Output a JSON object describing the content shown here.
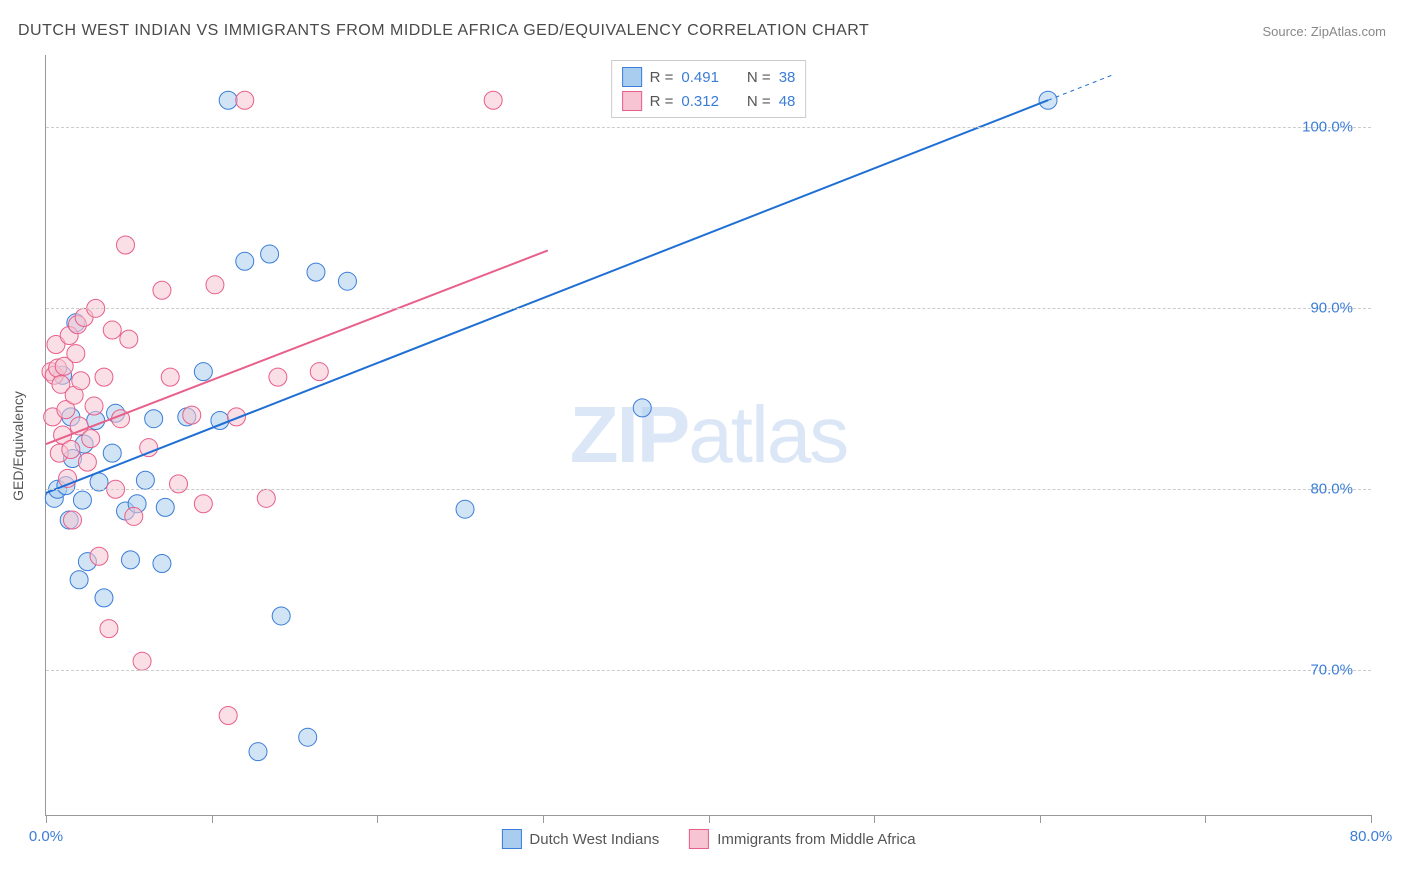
{
  "title": "DUTCH WEST INDIAN VS IMMIGRANTS FROM MIDDLE AFRICA GED/EQUIVALENCY CORRELATION CHART",
  "source": "Source: ZipAtlas.com",
  "watermark_bold": "ZIP",
  "watermark_light": "atlas",
  "y_axis_label": "GED/Equivalency",
  "chart": {
    "type": "scatter",
    "background_color": "#ffffff",
    "grid_color": "#cccccc",
    "axis_color": "#999999",
    "text_color": "#555555",
    "value_color": "#3b7dd8",
    "xlim": [
      0,
      80
    ],
    "ylim": [
      62,
      104
    ],
    "x_ticks": [
      0,
      10,
      20,
      30,
      40,
      50,
      60,
      70,
      80
    ],
    "x_tick_labels": {
      "0": "0.0%",
      "80": "80.0%"
    },
    "y_ticks": [
      70,
      80,
      90,
      100
    ],
    "y_tick_labels": {
      "70": "70.0%",
      "80": "80.0%",
      "90": "90.0%",
      "100": "100.0%"
    },
    "marker_radius": 9,
    "marker_opacity": 0.55,
    "line_width": 2
  },
  "series": [
    {
      "name": "Dutch West Indians",
      "color_fill": "#a9cdee",
      "color_stroke": "#3b7dd8",
      "line_color": "#1f6fd4",
      "R": "0.491",
      "N": "38",
      "trend": {
        "x1": 0,
        "y1": 79.8,
        "x2": 60.5,
        "y2": 101.5,
        "dash_after_x": 80
      },
      "points": [
        [
          0.5,
          79.5
        ],
        [
          0.7,
          80.0
        ],
        [
          1.0,
          86.3
        ],
        [
          1.2,
          80.2
        ],
        [
          1.4,
          78.3
        ],
        [
          1.5,
          84.0
        ],
        [
          1.6,
          81.7
        ],
        [
          1.8,
          89.2
        ],
        [
          2.0,
          75.0
        ],
        [
          2.2,
          79.4
        ],
        [
          2.3,
          82.5
        ],
        [
          2.5,
          76.0
        ],
        [
          3.0,
          83.8
        ],
        [
          3.2,
          80.4
        ],
        [
          3.5,
          74.0
        ],
        [
          4.0,
          82.0
        ],
        [
          4.2,
          84.2
        ],
        [
          4.8,
          78.8
        ],
        [
          5.1,
          76.1
        ],
        [
          5.5,
          79.2
        ],
        [
          6.0,
          80.5
        ],
        [
          6.5,
          83.9
        ],
        [
          7.0,
          75.9
        ],
        [
          7.2,
          79.0
        ],
        [
          8.5,
          84.0
        ],
        [
          9.5,
          86.5
        ],
        [
          10.5,
          83.8
        ],
        [
          11.0,
          101.5
        ],
        [
          12.0,
          92.6
        ],
        [
          12.8,
          65.5
        ],
        [
          13.5,
          93.0
        ],
        [
          14.2,
          73.0
        ],
        [
          15.8,
          66.3
        ],
        [
          16.3,
          92.0
        ],
        [
          18.2,
          91.5
        ],
        [
          25.3,
          78.9
        ],
        [
          36.0,
          84.5
        ],
        [
          60.5,
          101.5
        ]
      ]
    },
    {
      "name": "Immigrants from Middle Africa",
      "color_fill": "#f6c4d2",
      "color_stroke": "#e85f8a",
      "line_color": "#e85f8a",
      "R": "0.312",
      "N": "48",
      "trend": {
        "x1": 0,
        "y1": 82.5,
        "x2": 30.3,
        "y2": 93.2,
        "dash_after_x": 30.3
      },
      "points": [
        [
          0.3,
          86.5
        ],
        [
          0.4,
          84.0
        ],
        [
          0.5,
          86.3
        ],
        [
          0.6,
          88.0
        ],
        [
          0.7,
          86.7
        ],
        [
          0.8,
          82.0
        ],
        [
          0.9,
          85.8
        ],
        [
          1.0,
          83.0
        ],
        [
          1.1,
          86.8
        ],
        [
          1.2,
          84.4
        ],
        [
          1.3,
          80.6
        ],
        [
          1.4,
          88.5
        ],
        [
          1.5,
          82.2
        ],
        [
          1.6,
          78.3
        ],
        [
          1.7,
          85.2
        ],
        [
          1.8,
          87.5
        ],
        [
          1.9,
          89.1
        ],
        [
          2.0,
          83.5
        ],
        [
          2.1,
          86.0
        ],
        [
          2.3,
          89.5
        ],
        [
          2.5,
          81.5
        ],
        [
          2.7,
          82.8
        ],
        [
          2.9,
          84.6
        ],
        [
          3.0,
          90.0
        ],
        [
          3.2,
          76.3
        ],
        [
          3.5,
          86.2
        ],
        [
          3.8,
          72.3
        ],
        [
          4.0,
          88.8
        ],
        [
          4.2,
          80.0
        ],
        [
          4.5,
          83.9
        ],
        [
          4.8,
          93.5
        ],
        [
          5.0,
          88.3
        ],
        [
          5.3,
          78.5
        ],
        [
          5.8,
          70.5
        ],
        [
          6.2,
          82.3
        ],
        [
          7.0,
          91.0
        ],
        [
          7.5,
          86.2
        ],
        [
          8.0,
          80.3
        ],
        [
          8.8,
          84.1
        ],
        [
          9.5,
          79.2
        ],
        [
          10.2,
          91.3
        ],
        [
          11.0,
          67.5
        ],
        [
          11.5,
          84.0
        ],
        [
          12.0,
          101.5
        ],
        [
          13.3,
          79.5
        ],
        [
          14.0,
          86.2
        ],
        [
          16.5,
          86.5
        ],
        [
          27.0,
          101.5
        ]
      ]
    }
  ],
  "legend_top_labels": {
    "R_prefix": "R =",
    "N_prefix": "N ="
  },
  "legend_bottom": [
    {
      "label": "Dutch West Indians",
      "fill": "#a9cdee",
      "stroke": "#3b7dd8"
    },
    {
      "label": "Immigrants from Middle Africa",
      "fill": "#f6c4d2",
      "stroke": "#e85f8a"
    }
  ]
}
